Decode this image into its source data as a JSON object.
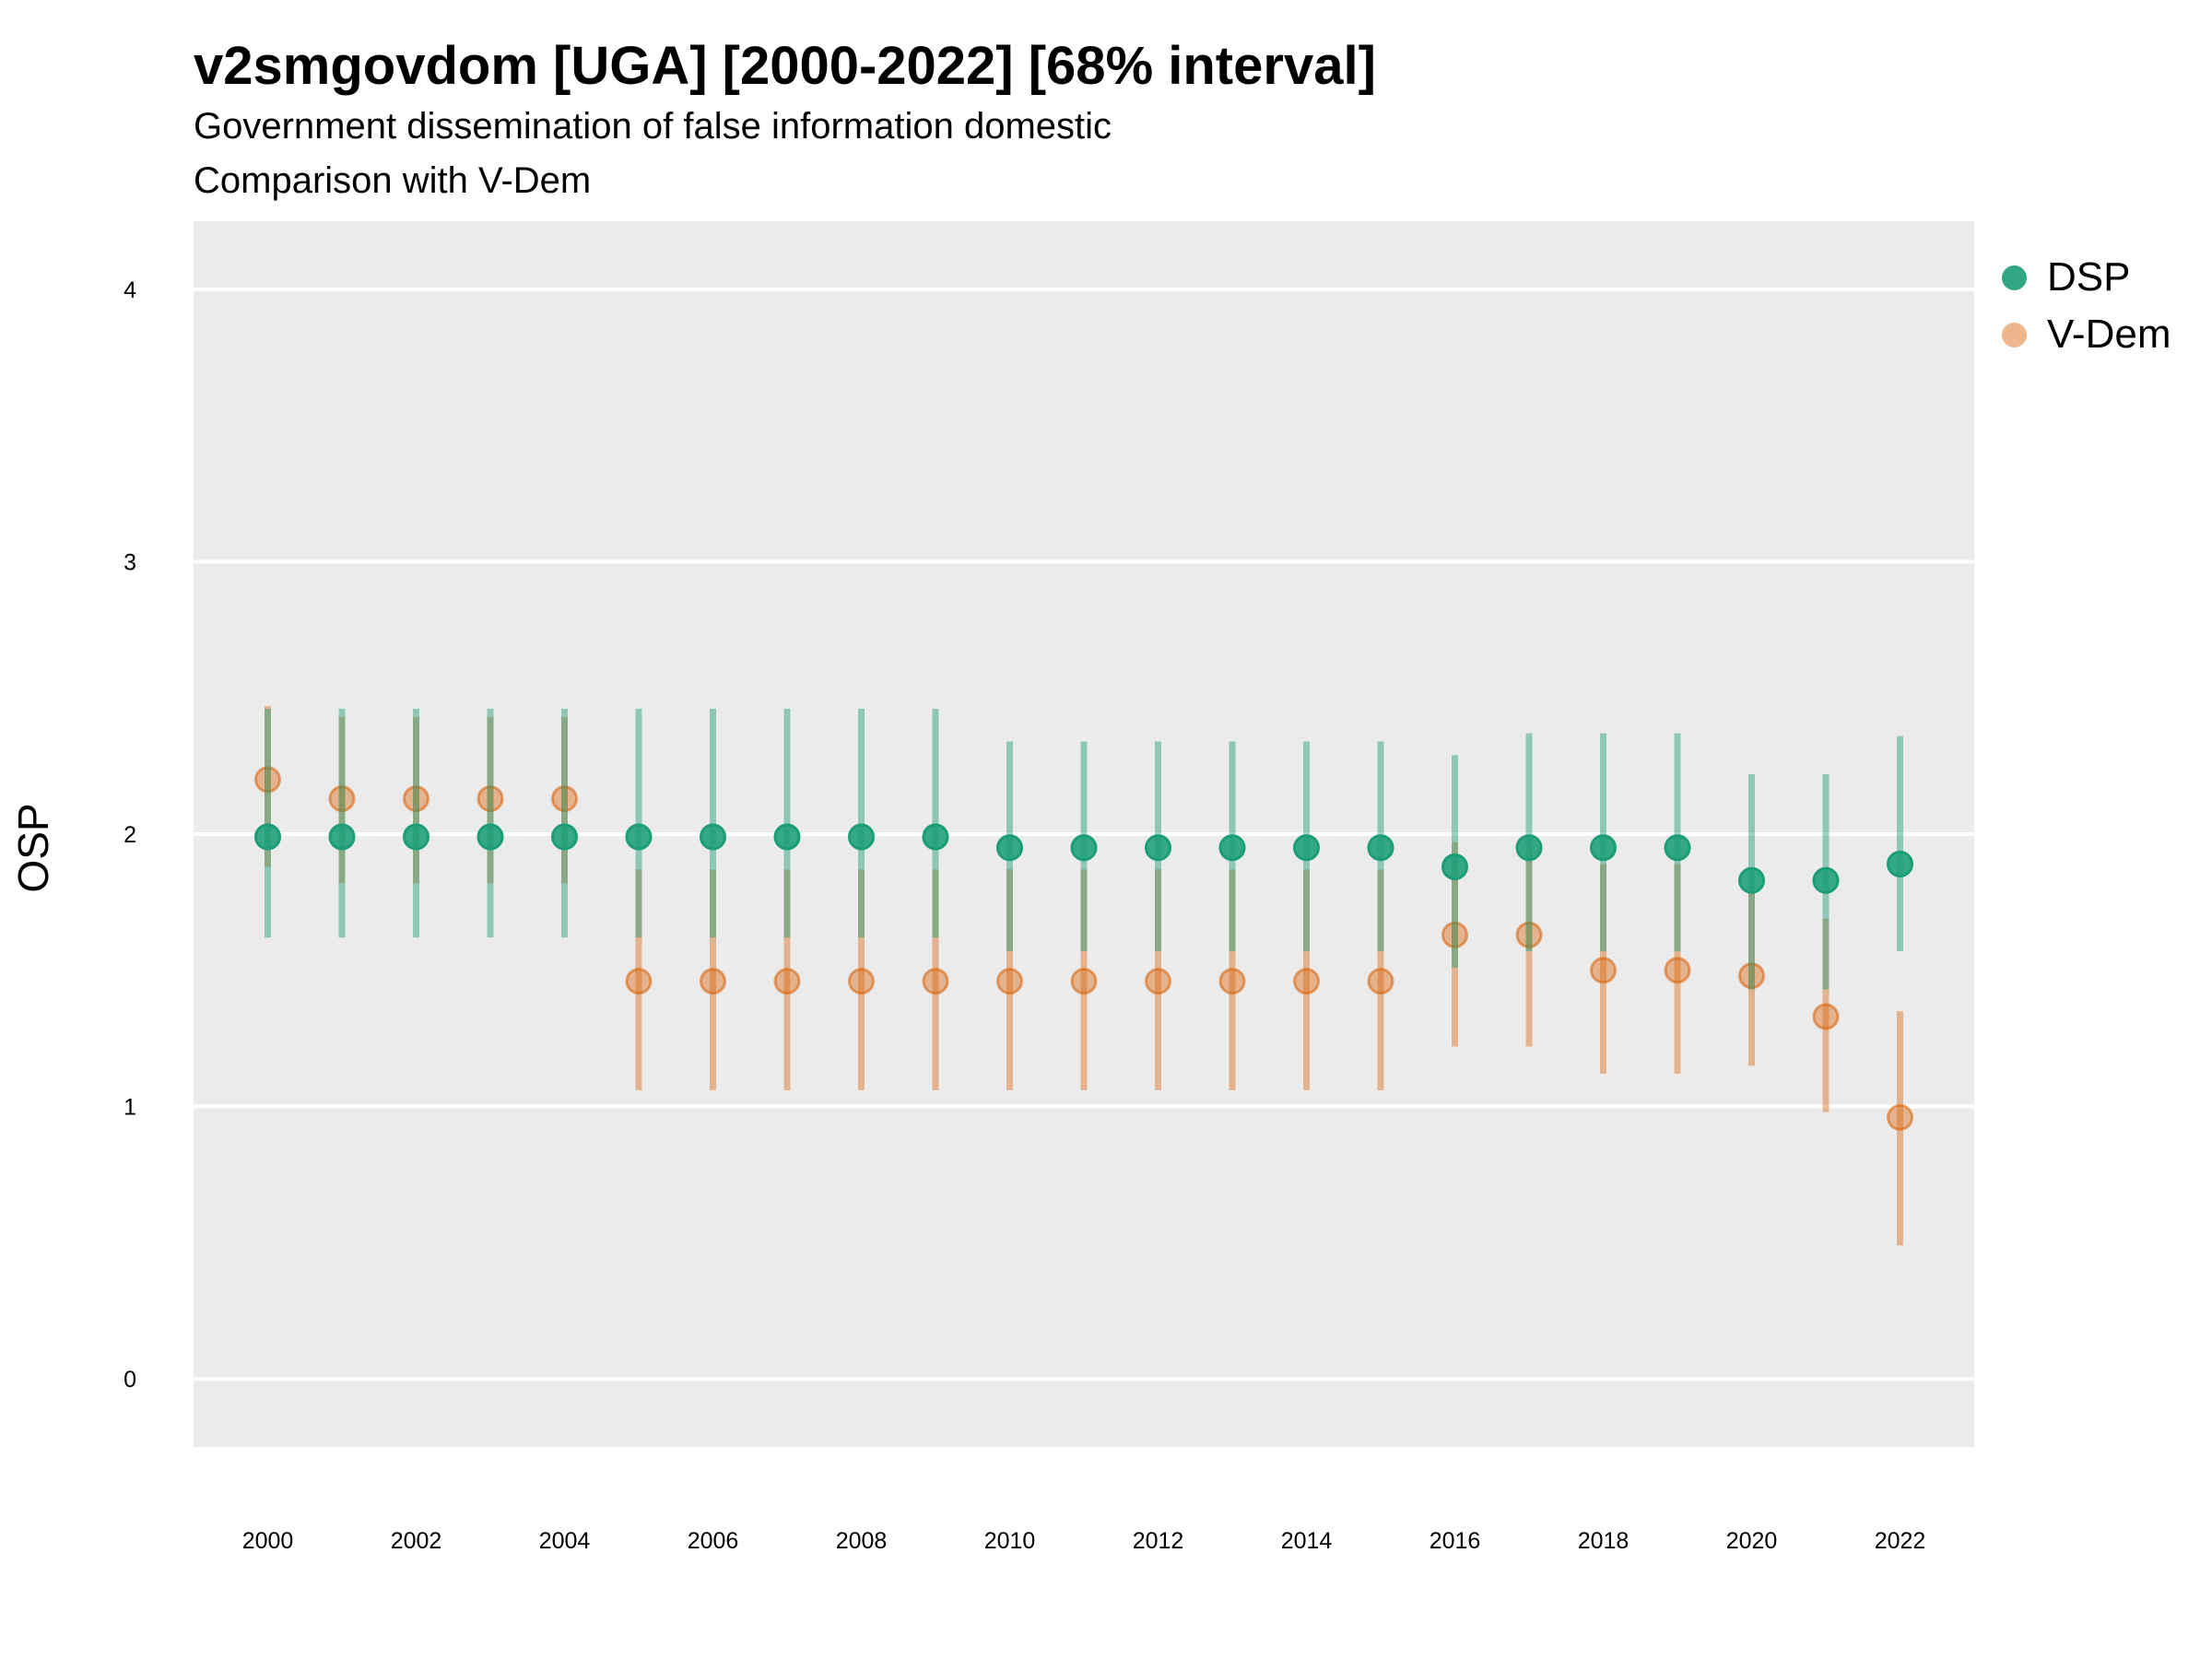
{
  "chart_data": {
    "type": "scatter",
    "title": "v2smgovdom [UGA] [2000-2022] [68% interval]",
    "subtitle": "Government dissemination of false information domestic",
    "subtitle2": "Comparison with V-Dem",
    "xlabel": "",
    "ylabel": "OSP",
    "ylim": [
      -0.25,
      4.25
    ],
    "xlim": [
      1999,
      2023
    ],
    "x_ticks": [
      2000,
      2002,
      2004,
      2006,
      2008,
      2010,
      2012,
      2014,
      2016,
      2018,
      2020,
      2022
    ],
    "y_ticks": [
      0,
      1,
      2,
      3,
      4
    ],
    "grid": true,
    "legend_position": "right",
    "x": [
      2000,
      2001,
      2002,
      2003,
      2004,
      2005,
      2006,
      2007,
      2008,
      2009,
      2010,
      2011,
      2012,
      2013,
      2014,
      2015,
      2016,
      2017,
      2018,
      2019,
      2020,
      2021,
      2022
    ],
    "series": [
      {
        "name": "DSP",
        "color": "#1b9e77",
        "values": [
          1.99,
          1.99,
          1.99,
          1.99,
          1.99,
          1.99,
          1.99,
          1.99,
          1.99,
          1.99,
          1.95,
          1.95,
          1.95,
          1.95,
          1.95,
          1.95,
          1.88,
          1.95,
          1.95,
          1.95,
          1.83,
          1.83,
          1.89
        ],
        "lower": [
          1.62,
          1.62,
          1.62,
          1.62,
          1.62,
          1.62,
          1.62,
          1.62,
          1.62,
          1.62,
          1.57,
          1.57,
          1.57,
          1.57,
          1.57,
          1.57,
          1.51,
          1.57,
          1.57,
          1.57,
          1.43,
          1.43,
          1.57
        ],
        "upper": [
          2.46,
          2.46,
          2.46,
          2.46,
          2.46,
          2.46,
          2.46,
          2.46,
          2.46,
          2.46,
          2.34,
          2.34,
          2.34,
          2.34,
          2.34,
          2.34,
          2.29,
          2.37,
          2.37,
          2.37,
          2.22,
          2.22,
          2.36
        ]
      },
      {
        "name": "V-Dem",
        "color": "#d95f02",
        "values": [
          2.2,
          2.13,
          2.13,
          2.13,
          2.13,
          1.46,
          1.46,
          1.46,
          1.46,
          1.46,
          1.46,
          1.46,
          1.46,
          1.46,
          1.46,
          1.46,
          1.63,
          1.63,
          1.5,
          1.5,
          1.48,
          1.33,
          0.96
        ],
        "lower": [
          1.88,
          1.82,
          1.82,
          1.82,
          1.82,
          1.06,
          1.06,
          1.06,
          1.06,
          1.06,
          1.06,
          1.06,
          1.06,
          1.06,
          1.06,
          1.06,
          1.22,
          1.22,
          1.12,
          1.12,
          1.15,
          0.98,
          0.49
        ],
        "upper": [
          2.47,
          2.43,
          2.43,
          2.43,
          2.43,
          1.87,
          1.87,
          1.87,
          1.87,
          1.87,
          1.87,
          1.87,
          1.87,
          1.87,
          1.87,
          1.87,
          1.97,
          1.97,
          1.89,
          1.89,
          1.81,
          1.69,
          1.35
        ]
      }
    ]
  }
}
